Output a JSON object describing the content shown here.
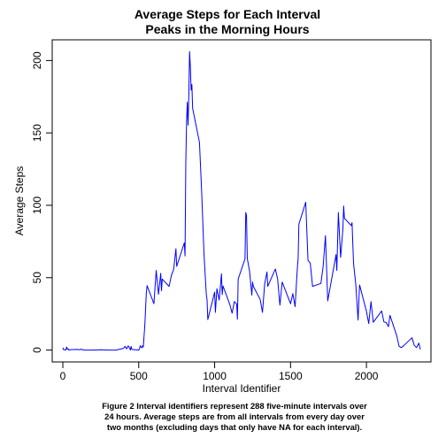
{
  "chart_data": {
    "type": "line",
    "title_lines": [
      "Average Steps for Each Interval",
      "Peaks in the Morning Hours"
    ],
    "xlabel": "Interval Identifier",
    "ylabel": "Average Steps",
    "xlim": [
      -70,
      2425
    ],
    "ylim": [
      -8.2,
      214.3
    ],
    "x_ticks": [
      0,
      500,
      1000,
      1500,
      2000
    ],
    "y_ticks": [
      0,
      50,
      100,
      150,
      200
    ],
    "line_color": "#0000ff",
    "grid": false,
    "legend": "none",
    "caption_lines": [
      "Figure 2 Interval identifiers represent 288 five-minute intervals over",
      "24 hours. Average steps are from all intervals from every day over",
      "two months (excluding days that only have NA for each interval)."
    ],
    "series": [
      {
        "x": [
          0,
          5,
          10,
          15,
          20,
          25,
          30,
          35,
          40,
          50,
          100,
          110,
          120,
          130,
          140,
          200,
          250,
          300,
          350,
          400,
          410,
          420,
          430,
          440,
          445,
          450,
          455,
          500,
          505,
          510,
          515,
          520,
          525,
          530,
          540,
          550,
          555,
          600,
          615,
          630,
          645,
          650,
          655,
          700,
          715,
          730,
          745,
          750,
          800,
          805,
          810,
          815,
          820,
          825,
          830,
          835,
          840,
          845,
          850,
          855,
          900,
          915,
          930,
          945,
          950,
          955,
          1000,
          1005,
          1015,
          1030,
          1045,
          1050,
          1055,
          1100,
          1115,
          1130,
          1145,
          1150,
          1155,
          1200,
          1205,
          1210,
          1215,
          1230,
          1245,
          1250,
          1255,
          1300,
          1315,
          1330,
          1345,
          1350,
          1400,
          1415,
          1430,
          1445,
          1500,
          1515,
          1530,
          1545,
          1550,
          1555,
          1600,
          1615,
          1630,
          1645,
          1700,
          1715,
          1730,
          1745,
          1800,
          1805,
          1815,
          1830,
          1845,
          1850,
          1855,
          1900,
          1905,
          1915,
          1930,
          1945,
          1950,
          1955,
          2000,
          2015,
          2030,
          2045,
          2100,
          2115,
          2130,
          2145,
          2155,
          2200,
          2215,
          2230,
          2245,
          2300,
          2315,
          2330,
          2345,
          2355
        ],
        "y": [
          1.7,
          0.3,
          0.1,
          0.2,
          0.1,
          2.1,
          0.5,
          0.9,
          0.0,
          0.3,
          0.4,
          0.2,
          0.6,
          0.3,
          0.0,
          0.0,
          0.2,
          0.0,
          0.0,
          1.2,
          2.6,
          0.8,
          2.9,
          1.5,
          0.0,
          2.5,
          0.4,
          0.0,
          1.0,
          3.0,
          2.2,
          1.5,
          3.0,
          2.1,
          17.0,
          39.5,
          44.5,
          32.0,
          55.0,
          38.5,
          53.0,
          41.0,
          49.0,
          44.0,
          51.5,
          55.7,
          70.0,
          57.8,
          74.0,
          65.0,
          129.4,
          157.5,
          171.2,
          155.4,
          177.3,
          206.2,
          195.9,
          179.6,
          183.4,
          167.0,
          143.5,
          108.1,
          66.2,
          38.5,
          34.8,
          21.1,
          40.0,
          26.0,
          42.4,
          34.5,
          52.7,
          38.3,
          44.3,
          31.4,
          25.5,
          33.5,
          31.8,
          21.3,
          49.0,
          63.0,
          95.0,
          93.0,
          63.4,
          54.5,
          38.0,
          47.0,
          44.0,
          35.0,
          26.0,
          46.0,
          54.0,
          44.0,
          56.0,
          49.0,
          31.0,
          47.0,
          32.0,
          39.0,
          30.0,
          57.0,
          63.0,
          87.0,
          102.1,
          62.0,
          60.0,
          44.0,
          46.0,
          58.0,
          79.0,
          34.0,
          66.0,
          55.0,
          95.0,
          64.0,
          84.0,
          99.5,
          91.0,
          86.0,
          88.0,
          60.0,
          45.0,
          20.7,
          34.0,
          45.0,
          26.8,
          18.3,
          33.5,
          19.2,
          27.0,
          19.5,
          19.0,
          16.2,
          24.0,
          9.8,
          2.6,
          1.7,
          3.0,
          8.5,
          3.3,
          1.7,
          4.8,
          0.4
        ]
      }
    ]
  }
}
